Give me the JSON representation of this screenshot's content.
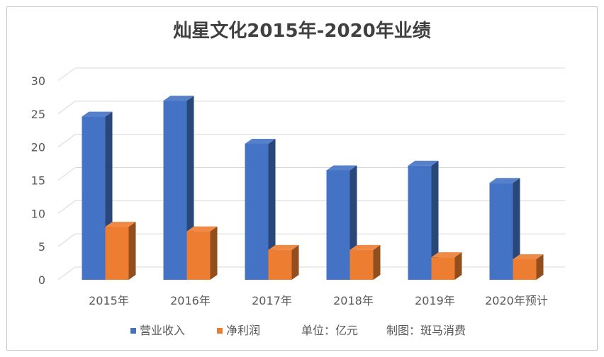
{
  "chart_data": {
    "type": "bar",
    "title": "灿星文化2015年-2020年业绩",
    "categories": [
      "2015年",
      "2016年",
      "2017年",
      "2018年",
      "2019年",
      "2020年预计"
    ],
    "series": [
      {
        "name": "营业收入",
        "values": [
          24.6,
          27.0,
          20.5,
          16.5,
          17.2,
          14.6
        ],
        "color": "#4472c4"
      },
      {
        "name": "净利润",
        "values": [
          8.0,
          7.3,
          4.5,
          4.5,
          3.4,
          3.1
        ],
        "color": "#ed7d31"
      }
    ],
    "ylim": [
      0,
      30
    ],
    "yticks": [
      "0",
      "5",
      "10",
      "15",
      "20",
      "25",
      "30"
    ],
    "grid": true,
    "legend_position": "bottom",
    "notes": [
      "单位：亿元",
      "制图：斑马消费"
    ]
  }
}
